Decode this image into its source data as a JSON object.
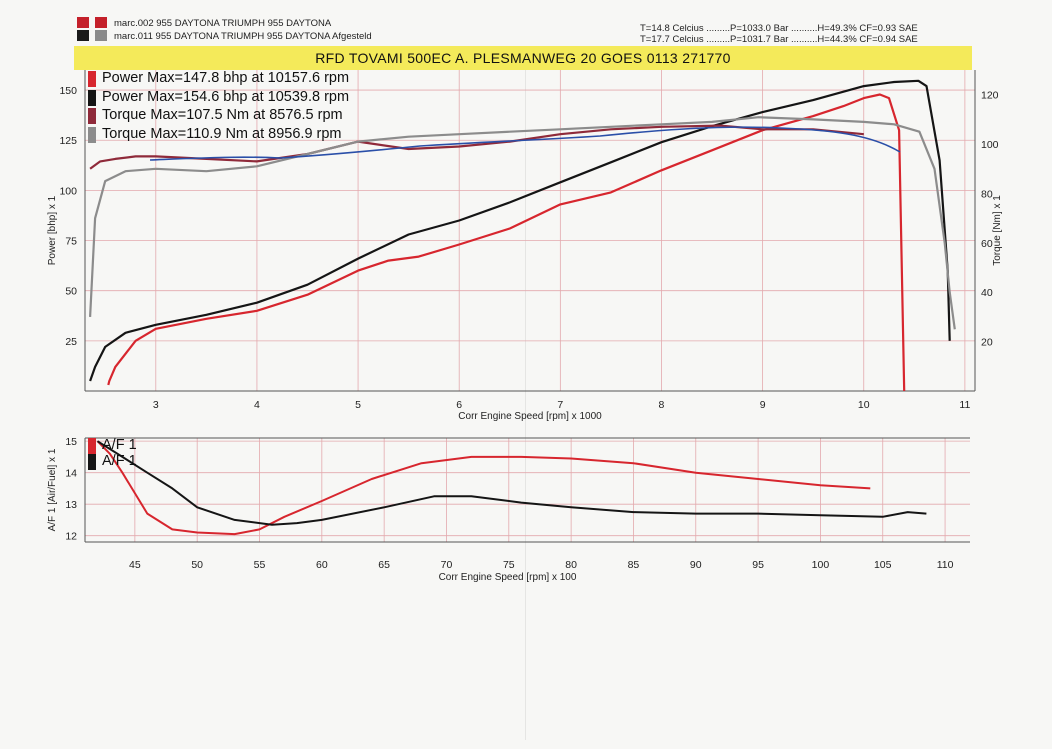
{
  "header": {
    "runs": [
      {
        "label": "marc.002 955 DAYTONA   TRIUMPH 955 DAYTONA",
        "swatches": [
          "#c4202a",
          "#c4202a"
        ]
      },
      {
        "label": "marc.011 955 DAYTONA   TRIUMPH 955 DAYTONA Afgesteld",
        "swatches": [
          "#1a1a1a",
          "#8a8a8a"
        ]
      }
    ],
    "conditions": [
      "T=14.8 Celcius .........P=1033.0 Bar ..........H=49.3% CF=0.93 SAE",
      "T=17.7 Celcius .........P=1031.7 Bar ..........H=44.3% CF=0.94 SAE"
    ],
    "banner": "RFD TOVAMI 500EC  A. PLESMANWEG 20 GOES 0113 271770"
  },
  "colors": {
    "red": "#d7262e",
    "black": "#151515",
    "maroon": "#8f2a3a",
    "gray": "#8c8c8c",
    "blue": "#2a4fa8",
    "grid": "#e3a9ad"
  },
  "chart_data": [
    {
      "type": "line",
      "xlabel": "Corr Engine Speed [rpm] x 1000",
      "ylabel": "Power [bhp] x 1",
      "y2label": "Torque [Nm] x 1",
      "xlim": [
        2.3,
        11.1
      ],
      "ylim": [
        0,
        160
      ],
      "y2lim": [
        0,
        130
      ],
      "xticks": [
        3,
        4,
        5,
        6,
        7,
        8,
        9,
        10,
        11
      ],
      "yticks": [
        25,
        50,
        75,
        100,
        125,
        150
      ],
      "y2ticks": [
        20,
        40,
        60,
        80,
        100,
        120
      ],
      "legend": [
        {
          "label": "Power  Max=147.8 bhp at 10157.6 rpm",
          "color": "red"
        },
        {
          "label": "Power  Max=154.6 bhp at 10539.8 rpm",
          "color": "black"
        },
        {
          "label": "Torque  Max=107.5 Nm at 8576.5 rpm",
          "color": "maroon"
        },
        {
          "label": "Torque  Max=110.9 Nm at 8956.9 rpm",
          "color": "gray"
        }
      ],
      "series": [
        {
          "name": "Power  Max=147.8 bhp at 10157.6 rpm",
          "axis": "left",
          "color": "red",
          "x": [
            2.53,
            2.54,
            2.6,
            2.8,
            3.0,
            3.5,
            4.0,
            4.5,
            5.0,
            5.3,
            5.6,
            6.0,
            6.5,
            7.0,
            7.5,
            8.0,
            8.5,
            9.0,
            9.5,
            9.8,
            10.0,
            10.16,
            10.25,
            10.35,
            10.4
          ],
          "y": [
            3,
            5,
            12,
            25,
            31,
            36,
            40,
            48,
            60,
            65,
            67,
            73,
            81,
            93,
            99,
            110,
            120,
            130,
            137,
            142,
            146,
            147.8,
            146,
            130,
            0
          ]
        },
        {
          "name": "Power  Max=154.6 bhp at 10539.8 rpm",
          "axis": "left",
          "color": "black",
          "x": [
            2.35,
            2.4,
            2.5,
            2.7,
            3.0,
            3.5,
            4.0,
            4.5,
            5.0,
            5.5,
            6.0,
            6.5,
            7.0,
            7.5,
            8.0,
            8.5,
            9.0,
            9.5,
            10.0,
            10.3,
            10.54,
            10.62,
            10.75,
            10.83,
            10.85
          ],
          "y": [
            5,
            12,
            22,
            29,
            33,
            38,
            44,
            53,
            66,
            78,
            85,
            94,
            104,
            114,
            124,
            132,
            139,
            145,
            152,
            154,
            154.6,
            152,
            115,
            60,
            25
          ]
        },
        {
          "name": "Torque  Max=107.5 Nm at 8576.5 rpm",
          "axis": "right",
          "color": "maroon",
          "x": [
            2.35,
            2.45,
            2.6,
            2.8,
            3.0,
            3.5,
            4.0,
            4.5,
            5.0,
            5.5,
            6.0,
            6.5,
            7.0,
            7.5,
            8.0,
            8.58,
            9.0,
            9.5,
            10.0
          ],
          "y": [
            90,
            93,
            94,
            95,
            95,
            94,
            93,
            96,
            101,
            98,
            99,
            101,
            104,
            106,
            107,
            107.5,
            106,
            106,
            104
          ]
        },
        {
          "name": "Torque  Max=110.9 Nm at 8956.9 rpm",
          "axis": "right",
          "color": "gray",
          "x": [
            2.35,
            2.4,
            2.5,
            2.7,
            3.0,
            3.5,
            4.0,
            4.5,
            5.0,
            5.5,
            6.0,
            6.5,
            7.0,
            7.5,
            8.0,
            8.5,
            8.96,
            9.5,
            10.0,
            10.3,
            10.55,
            10.7,
            10.8,
            10.85,
            10.9
          ],
          "y": [
            30,
            70,
            85,
            89,
            90,
            89,
            91,
            96,
            101,
            103,
            104,
            105,
            106,
            107,
            108,
            109,
            110.9,
            110,
            109,
            108,
            105,
            90,
            60,
            40,
            25
          ]
        }
      ]
    },
    {
      "type": "line",
      "xlabel": "Corr Engine Speed [rpm] x 100",
      "ylabel": "A/F 1 [Air/Fuel] x 1",
      "xlim": [
        41,
        112
      ],
      "ylim": [
        11.8,
        15.1
      ],
      "xticks": [
        45,
        50,
        55,
        60,
        65,
        70,
        75,
        80,
        85,
        90,
        95,
        100,
        105,
        110
      ],
      "yticks": [
        12,
        13,
        14,
        15
      ],
      "legend": [
        {
          "label": "A/F 1",
          "color": "red"
        },
        {
          "label": "A/F 1",
          "color": "black"
        }
      ],
      "series": [
        {
          "name": "A/F 1",
          "color": "red",
          "x": [
            42,
            43,
            44,
            46,
            48,
            50,
            53,
            55,
            57,
            60,
            64,
            68,
            72,
            76,
            80,
            85,
            90,
            95,
            100,
            104
          ],
          "y": [
            15.0,
            14.6,
            14.0,
            12.7,
            12.2,
            12.1,
            12.05,
            12.2,
            12.6,
            13.1,
            13.8,
            14.3,
            14.5,
            14.5,
            14.45,
            14.3,
            14.0,
            13.8,
            13.6,
            13.5
          ]
        },
        {
          "name": "A/F 1",
          "color": "black",
          "x": [
            42,
            44,
            46,
            48,
            50,
            53,
            56,
            58,
            60,
            65,
            69,
            72,
            76,
            80,
            85,
            90,
            95,
            100,
            105,
            107,
            108.5
          ],
          "y": [
            15.0,
            14.5,
            14.0,
            13.5,
            12.9,
            12.5,
            12.35,
            12.4,
            12.5,
            12.9,
            13.25,
            13.25,
            13.05,
            12.9,
            12.75,
            12.7,
            12.7,
            12.65,
            12.6,
            12.75,
            12.7
          ]
        }
      ]
    }
  ]
}
